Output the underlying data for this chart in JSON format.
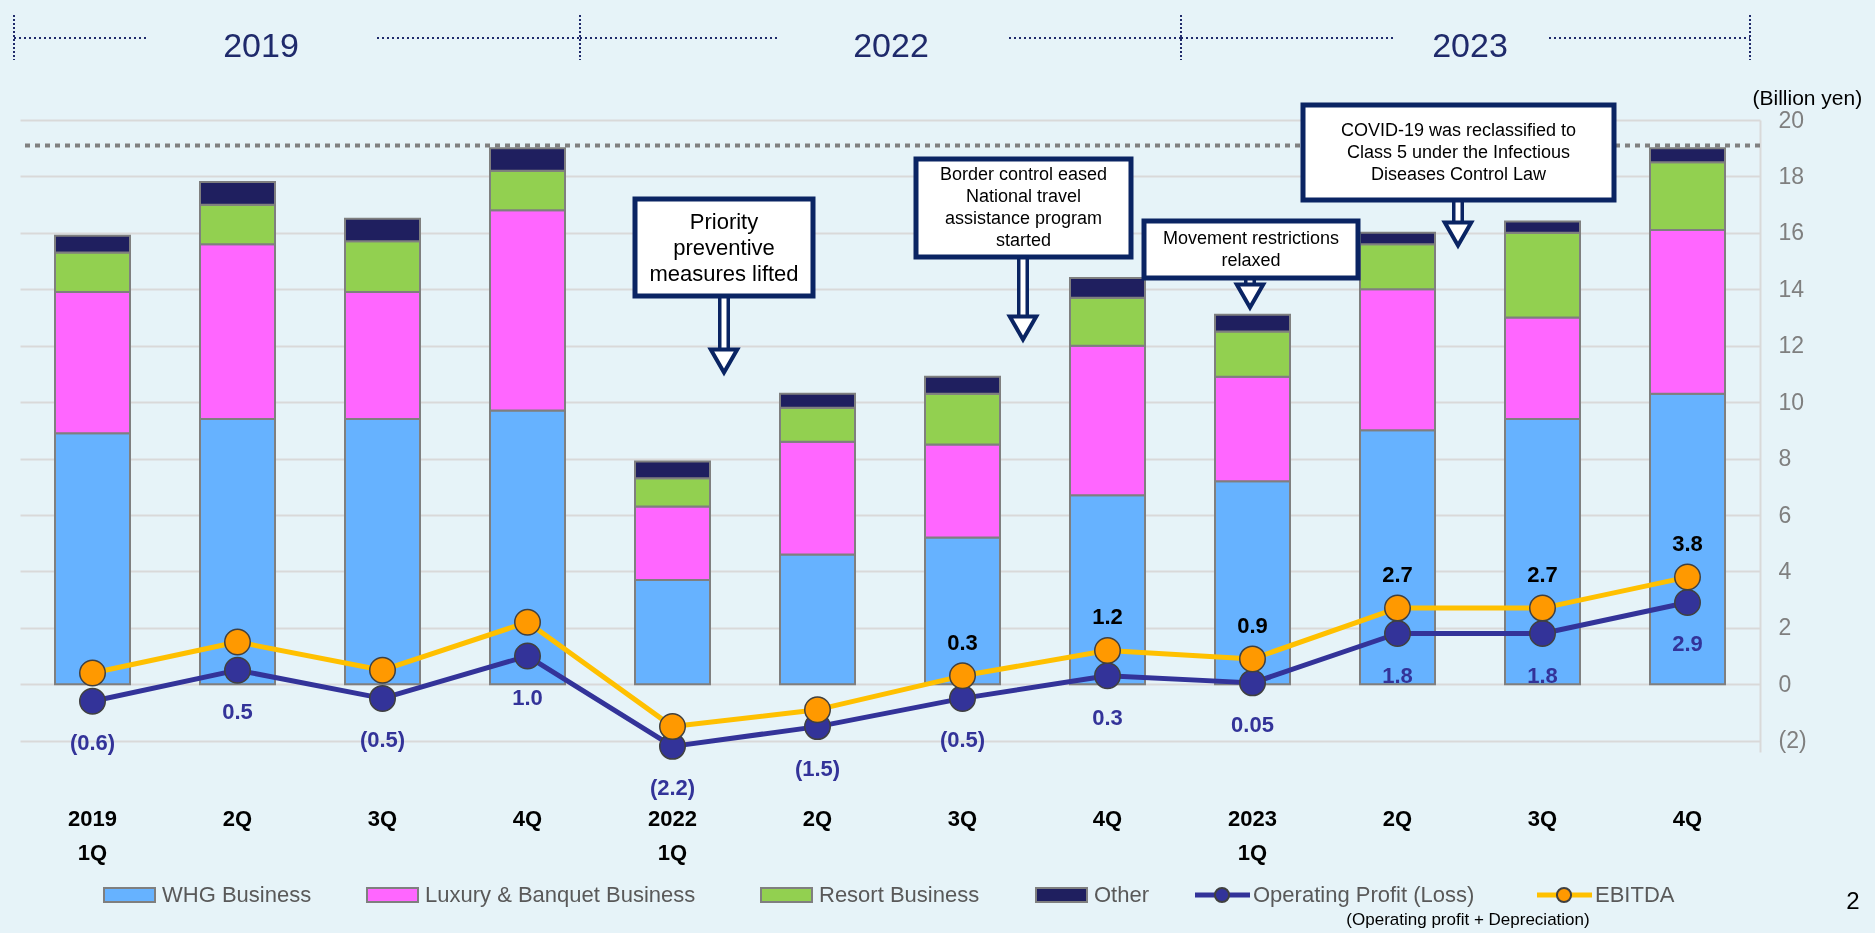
{
  "chart_data": {
    "type": "bar",
    "stacked": true,
    "categories": [
      "2019\n1Q",
      "2Q",
      "3Q",
      "4Q",
      "2022\n1Q",
      "2Q",
      "3Q",
      "4Q",
      "2023\n1Q",
      "2Q",
      "3Q",
      "4Q"
    ],
    "series": [
      {
        "name": "WHG Business",
        "color": "#66b2ff",
        "values": [
          8.9,
          9.4,
          9.4,
          9.7,
          3.7,
          4.6,
          5.2,
          6.7,
          7.2,
          9.0,
          9.4,
          10.3
        ]
      },
      {
        "name": "Luxury & Banquet Business",
        "color": "#ff66ff",
        "values": [
          5.0,
          6.2,
          4.5,
          7.1,
          2.6,
          4.0,
          3.3,
          5.3,
          3.7,
          5.0,
          3.6,
          5.8
        ]
      },
      {
        "name": "Resort Business",
        "color": "#92d050",
        "values": [
          1.4,
          1.4,
          1.8,
          1.4,
          1.0,
          1.2,
          1.8,
          1.7,
          1.6,
          1.6,
          3.0,
          2.4
        ]
      },
      {
        "name": "Other",
        "color": "#1f1f5f",
        "values": [
          0.6,
          0.8,
          0.8,
          0.8,
          0.6,
          0.5,
          0.6,
          0.7,
          0.6,
          0.4,
          0.4,
          0.5
        ]
      },
      {
        "name": "Operating Profit (Loss)",
        "type": "line",
        "color": "#333399",
        "values": [
          -0.6,
          0.5,
          -0.5,
          1.0,
          -2.2,
          -1.5,
          -0.5,
          0.3,
          0.05,
          1.8,
          1.8,
          2.9
        ],
        "value_labels": [
          "(0.6)",
          "0.5",
          "(0.5)",
          "1.0",
          "(2.2)",
          "(1.5)",
          "(0.5)",
          "0.3",
          "0.05",
          "1.8",
          "1.8",
          "2.9"
        ]
      },
      {
        "name": "EBITDA",
        "type": "line",
        "color": "#ffc000",
        "colors": [
          "#ff9900",
          "#ff9900",
          "#ff9900",
          "#ff9900",
          "#ff9900",
          "#ff9900",
          "#ff9900",
          "#ff9900",
          "#ff9900",
          "#ff9900",
          "#ff9900",
          "#ff9900"
        ],
        "values": [
          0.4,
          1.5,
          0.5,
          2.2,
          -1.5,
          -0.9,
          0.3,
          1.2,
          0.9,
          2.7,
          2.7,
          3.8
        ],
        "value_labels": [
          null,
          null,
          null,
          null,
          null,
          null,
          "0.3",
          "1.2",
          "0.9",
          "2.7",
          "2.7",
          "3.8"
        ]
      }
    ],
    "ylabel": "(Billion yen)",
    "ylim": [
      -2.4,
      20
    ],
    "yticks": [
      {
        "value": -2,
        "label": "(2)"
      },
      0,
      2,
      4,
      6,
      8,
      10,
      12,
      14,
      16,
      18,
      20
    ],
    "ref_lines": [
      {
        "axis": "y",
        "value": 19.1,
        "color": "#808080",
        "line_style": "dotted"
      }
    ],
    "grid": "y",
    "legend": "bottom",
    "marker": "circle",
    "annotations": [
      "2019",
      "2022",
      "2023",
      "Priority\npreventive\nmeasures lifted",
      "Border control eased\nNational travel\nassistance program\nstarted",
      "Movement restrictions\nrelaxed",
      "COVID-19 was reclassified to\nClass 5 under the Infectious\nDiseases Control Law",
      "(Operating profit + Depreciation)",
      "2"
    ]
  }
}
